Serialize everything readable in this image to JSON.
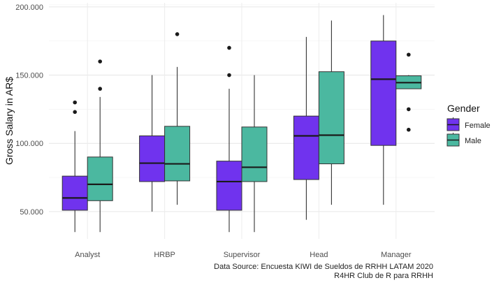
{
  "chart_data": {
    "type": "boxplot",
    "title": "",
    "xlabel": "",
    "ylabel": "Gross Salary in AR$",
    "ylim": [
      30000,
      203000
    ],
    "yticks": [
      50000,
      100000,
      150000,
      200000
    ],
    "ytick_labels": [
      "50.000",
      "100.000",
      "150.000",
      "200.000"
    ],
    "categories": [
      "Analyst",
      "HRBP",
      "Supervisor",
      "Head",
      "Manager"
    ],
    "grid": true,
    "legend": {
      "title": "Gender",
      "position": "right"
    },
    "series": [
      {
        "name": "Female",
        "color": "#7033ee",
        "boxes": [
          {
            "whisker_low": 35000,
            "q1": 51000,
            "median": 60000,
            "q3": 76000,
            "whisker_high": 109000,
            "outliers": [
              123000,
              130000
            ]
          },
          {
            "whisker_low": 50000,
            "q1": 72000,
            "median": 85500,
            "q3": 105500,
            "whisker_high": 150000,
            "outliers": []
          },
          {
            "whisker_low": 35000,
            "q1": 51000,
            "median": 72000,
            "q3": 87000,
            "whisker_high": 140000,
            "outliers": [
              150000,
              170000
            ]
          },
          {
            "whisker_low": 44000,
            "q1": 73500,
            "median": 105500,
            "q3": 120000,
            "whisker_high": 178000,
            "outliers": []
          },
          {
            "whisker_low": 55000,
            "q1": 98500,
            "median": 147000,
            "q3": 175000,
            "whisker_high": 194000,
            "outliers": []
          }
        ]
      },
      {
        "name": "Male",
        "color": "#4bb8a0",
        "boxes": [
          {
            "whisker_low": 35000,
            "q1": 58000,
            "median": 70000,
            "q3": 90000,
            "whisker_high": 134000,
            "outliers": [
              140000,
              160000
            ]
          },
          {
            "whisker_low": 55000,
            "q1": 72500,
            "median": 85000,
            "q3": 112500,
            "whisker_high": 156000,
            "outliers": [
              180000
            ]
          },
          {
            "whisker_low": 35000,
            "q1": 72000,
            "median": 82500,
            "q3": 112000,
            "whisker_high": 150000,
            "outliers": []
          },
          {
            "whisker_low": 55000,
            "q1": 85000,
            "median": 106000,
            "q3": 152500,
            "whisker_high": 190000,
            "outliers": []
          },
          {
            "whisker_low": 140000,
            "q1": 140000,
            "median": 144500,
            "q3": 149500,
            "whisker_high": 150000,
            "outliers": [
              110000,
              125000,
              165000
            ]
          }
        ]
      }
    ]
  },
  "captions": {
    "line1": "Data Source: Encuesta KIWI de Sueldos de RRHH LATAM 2020",
    "line2": "R4HR Club de R para RRHH"
  }
}
